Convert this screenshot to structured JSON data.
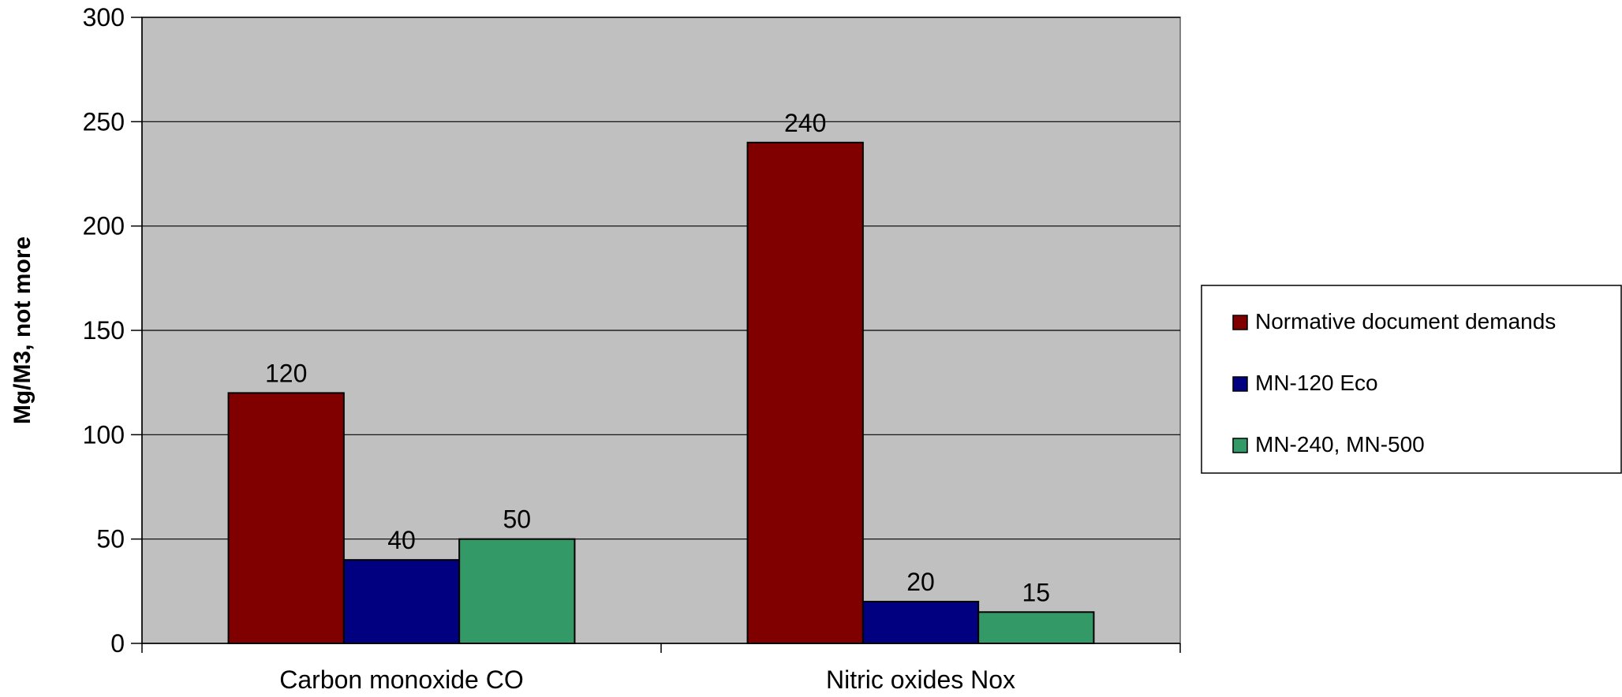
{
  "chart_data": {
    "type": "bar",
    "title": "",
    "xlabel": "",
    "ylabel": "Mg/M3, not more",
    "ylim": [
      0,
      300
    ],
    "yticks": [
      0,
      50,
      100,
      150,
      200,
      250,
      300
    ],
    "categories": [
      "Carbon monoxide CO",
      "Nitric oxides Nox"
    ],
    "series": [
      {
        "name": "Normative document demands",
        "color": "#800000",
        "values": [
          120,
          240
        ]
      },
      {
        "name": "MN-120 Eco",
        "color": "#000080",
        "values": [
          40,
          20
        ]
      },
      {
        "name": "MN-240, MN-500",
        "color": "#339966",
        "values": [
          50,
          15
        ]
      }
    ],
    "data_labels": [
      [
        "120",
        "240"
      ],
      [
        "40",
        "20"
      ],
      [
        "50",
        "15"
      ]
    ],
    "grid": true,
    "plot_background": "#c0c0c0",
    "legend_position": "right"
  }
}
